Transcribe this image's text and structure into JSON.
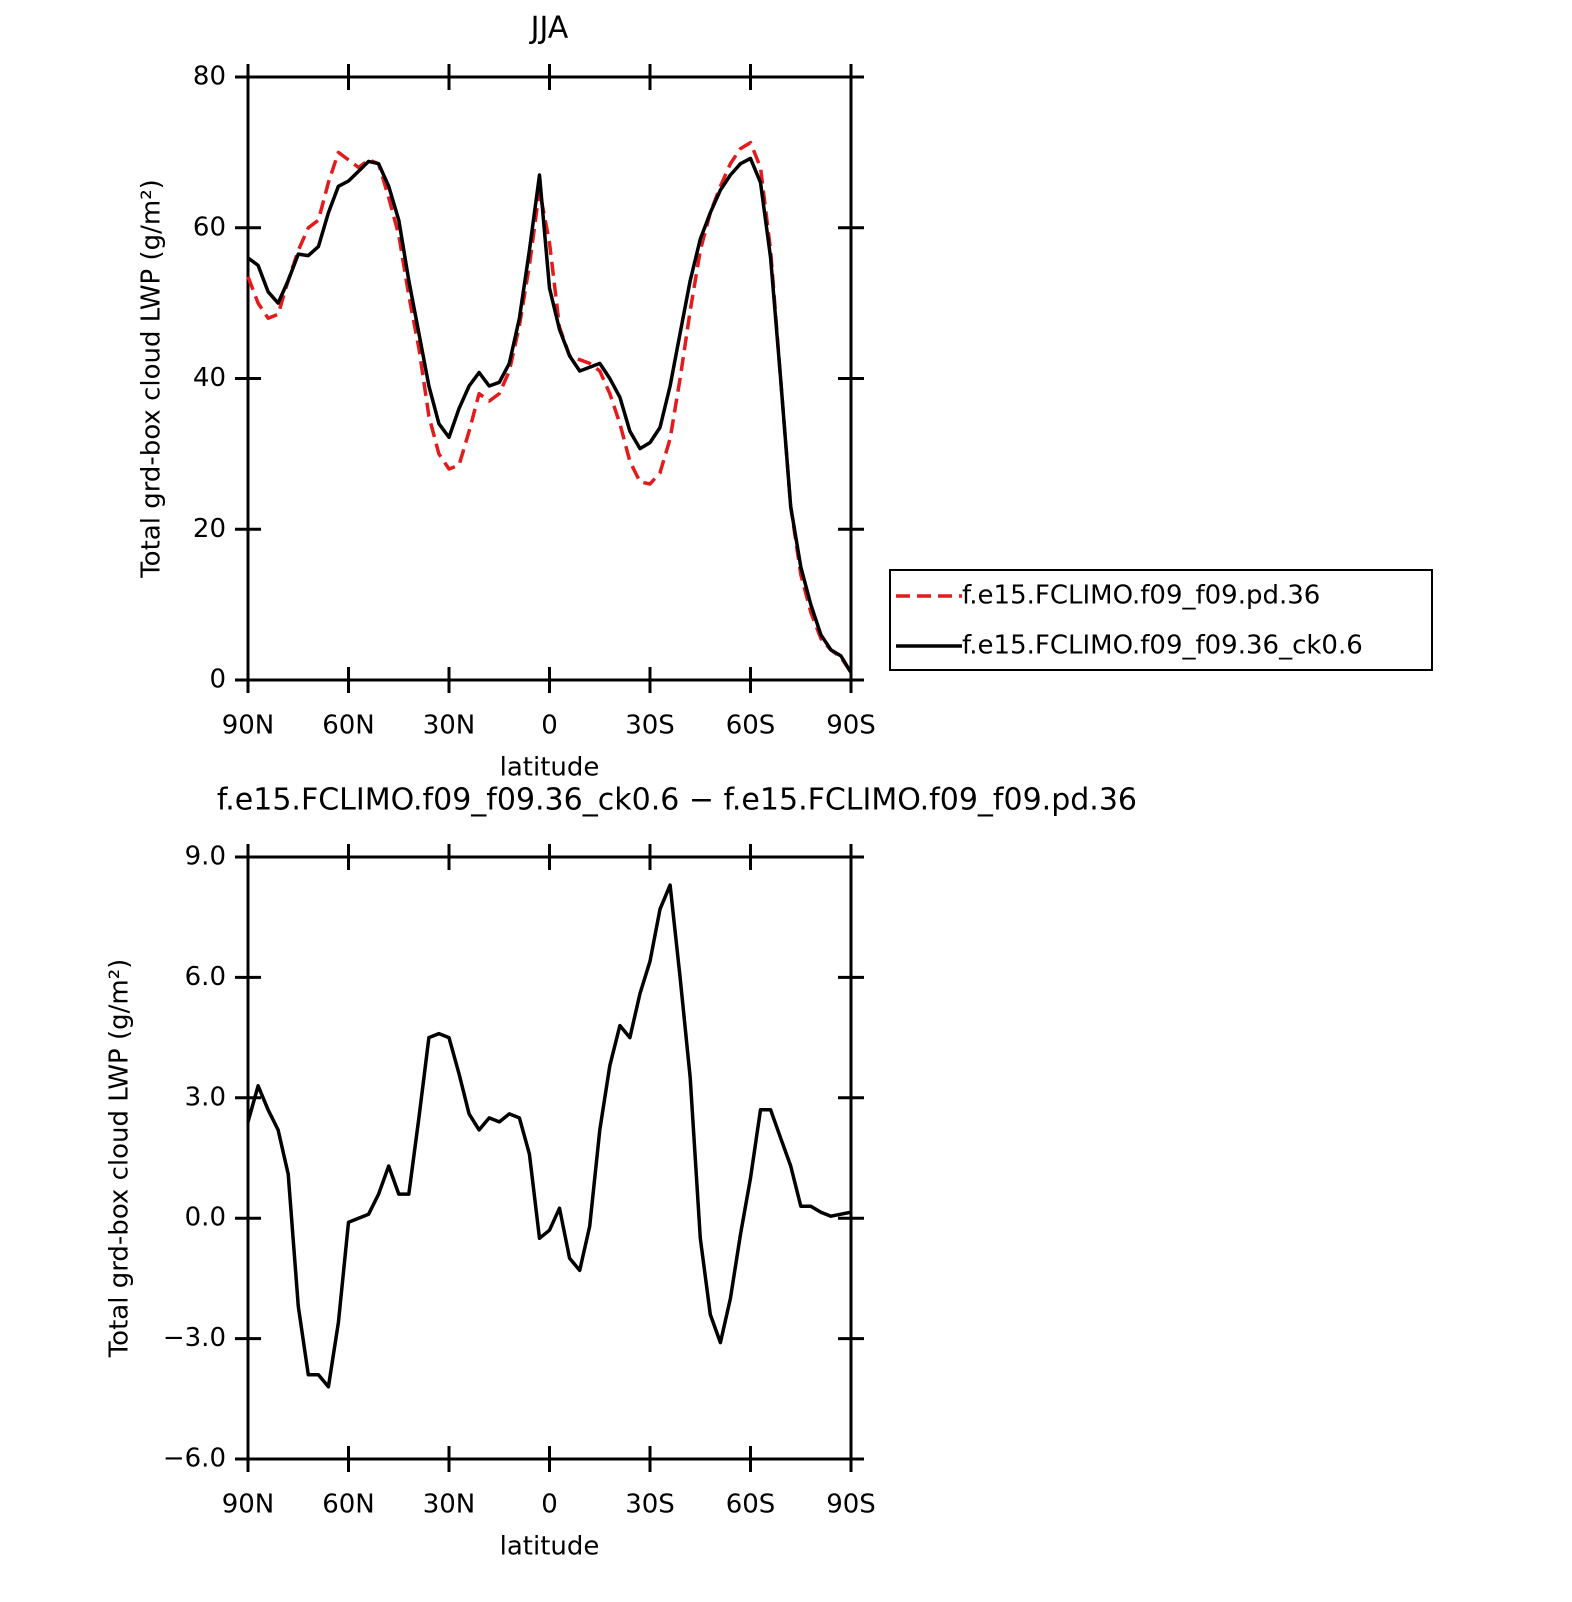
{
  "chart_data": [
    {
      "type": "line",
      "title": "JJA",
      "xlabel": "latitude",
      "ylabel": "Total grd-box cloud LWP (g/m²)",
      "x": [
        90,
        87,
        84,
        81,
        78,
        75,
        72,
        69,
        66,
        63,
        60,
        57,
        54,
        51,
        48,
        45,
        42,
        39,
        36,
        33,
        30,
        27,
        24,
        21,
        18,
        15,
        12,
        9,
        6,
        3,
        0,
        -3,
        -6,
        -9,
        -12,
        -15,
        -18,
        -21,
        -24,
        -27,
        -30,
        -33,
        -36,
        -39,
        -42,
        -45,
        -48,
        -51,
        -54,
        -57,
        -60,
        -63,
        -66,
        -69,
        -72,
        -75,
        -78,
        -81,
        -84,
        -87,
        -90
      ],
      "series": [
        {
          "name": "f.e15.FCLIMO.f09_f09.pd.36",
          "color": "#e41a1c",
          "dash": "dashed",
          "values": [
            53.5,
            50,
            48,
            48.5,
            53,
            57,
            60,
            61,
            66,
            70,
            69,
            68,
            69,
            68.5,
            64,
            59,
            51,
            44,
            35,
            30,
            28,
            28.5,
            33,
            38,
            37,
            38,
            41,
            47,
            55,
            65,
            58,
            46.8,
            43,
            42.5,
            42,
            41,
            38,
            34,
            29,
            26.3,
            26,
            27.5,
            32,
            40,
            49,
            57,
            62,
            65.5,
            68.5,
            70.5,
            71.3,
            68,
            57,
            40,
            23,
            14,
            9,
            5.5,
            4,
            3,
            1
          ]
        },
        {
          "name": "f.e15.FCLIMO.f09_f09.36_ck0.6",
          "color": "#000000",
          "dash": "solid",
          "values": [
            56,
            55,
            51.5,
            50,
            53,
            56.5,
            56.3,
            57.5,
            62,
            65.5,
            66.2,
            67.5,
            68.8,
            68.5,
            65.5,
            61,
            53,
            46,
            39,
            34,
            32.2,
            36,
            39,
            40.8,
            39,
            39.5,
            42,
            48,
            57,
            67,
            52,
            46.5,
            43,
            41,
            41.5,
            42,
            40,
            37.5,
            33,
            30.7,
            31.5,
            33.5,
            39,
            46,
            53,
            58.5,
            62,
            65,
            67,
            68.5,
            69.2,
            66,
            56,
            40,
            23,
            15,
            10,
            6,
            4,
            3.2,
            1
          ]
        }
      ],
      "xlim": [
        90,
        -90
      ],
      "xticks": [
        {
          "value": 90,
          "label": "90N"
        },
        {
          "value": 60,
          "label": "60N"
        },
        {
          "value": 30,
          "label": "30N"
        },
        0,
        {
          "value": -30,
          "label": "30S"
        },
        {
          "value": -60,
          "label": "60S"
        },
        {
          "value": -90,
          "label": "90S"
        }
      ],
      "ylim": [
        0,
        80
      ],
      "yticks": [
        0,
        20,
        40,
        60,
        80
      ],
      "legend": "right"
    },
    {
      "type": "line",
      "title": "f.e15.FCLIMO.f09_f09.36_ck0.6 − f.e15.FCLIMO.f09_f09.pd.36",
      "xlabel": "latitude",
      "ylabel": "Total grd-box cloud LWP (g/m²)",
      "x": [
        90,
        87,
        84,
        81,
        78,
        75,
        72,
        69,
        66,
        63,
        60,
        57,
        54,
        51,
        48,
        45,
        42,
        39,
        36,
        33,
        30,
        27,
        24,
        21,
        18,
        15,
        12,
        9,
        6,
        3,
        0,
        -3,
        -6,
        -9,
        -12,
        -15,
        -18,
        -21,
        -24,
        -27,
        -30,
        -33,
        -36,
        -39,
        -42,
        -45,
        -48,
        -51,
        -54,
        -57,
        -60,
        -63,
        -66,
        -69,
        -72,
        -75,
        -78,
        -81,
        -84,
        -87,
        -90
      ],
      "values": [
        2.4,
        3.3,
        2.7,
        2.2,
        1.1,
        -2.2,
        -3.9,
        -3.9,
        -4.2,
        -2.6,
        -0.1,
        0,
        0.1,
        0.6,
        1.3,
        0.6,
        0.6,
        2.5,
        4.5,
        4.6,
        4.5,
        3.6,
        2.6,
        2.2,
        2.5,
        2.4,
        2.6,
        2.5,
        1.6,
        -0.5,
        -0.3,
        0.25,
        -1,
        -1.3,
        -0.2,
        2.2,
        3.8,
        4.8,
        4.5,
        5.6,
        6.4,
        7.7,
        8.3,
        6,
        3.5,
        -0.5,
        -2.4,
        -3.1,
        -2,
        -0.4,
        1,
        2.7,
        2.7,
        2,
        1.3,
        0.3,
        0.3,
        0.15,
        0.05,
        0.1,
        0.15
      ],
      "color": "#000000",
      "xlim": [
        90,
        -90
      ],
      "xticks": [
        {
          "value": 90,
          "label": "90N"
        },
        {
          "value": 60,
          "label": "60N"
        },
        {
          "value": 30,
          "label": "30N"
        },
        0,
        {
          "value": -30,
          "label": "30S"
        },
        {
          "value": -60,
          "label": "60S"
        },
        {
          "value": -90,
          "label": "90S"
        }
      ],
      "ylim": [
        -6,
        9
      ],
      "yticks": [
        {
          "value": -6,
          "label": "−6.0"
        },
        {
          "value": -3,
          "label": "−3.0"
        },
        {
          "value": 0,
          "label": "0.0"
        },
        {
          "value": 3,
          "label": "3.0"
        },
        {
          "value": 6,
          "label": "6.0"
        },
        {
          "value": 9,
          "label": "9.0"
        }
      ]
    }
  ]
}
